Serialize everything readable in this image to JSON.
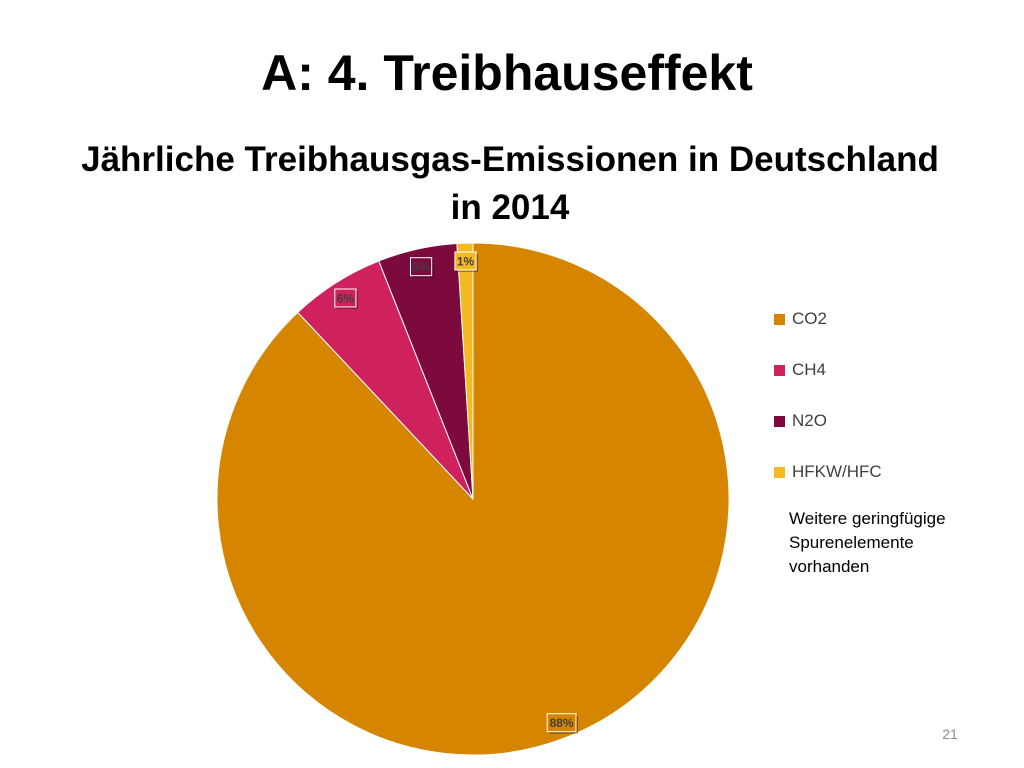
{
  "slide": {
    "title": "A: 4. Treibhauseffekt",
    "page_number": "21"
  },
  "footnote": {
    "lines": [
      "Weitere geringfügige",
      "Spurenelemente",
      "vorhanden"
    ]
  },
  "chart_data": {
    "type": "pie",
    "title_lines": [
      "Jährliche Treibhausgas-Emissionen in Deutschland",
      "in 2014"
    ],
    "categories": [
      "CO2",
      "CH4",
      "N2O",
      "HFKW/HFC"
    ],
    "values": [
      88,
      6,
      5,
      1
    ],
    "data_labels": [
      "88%",
      "6%",
      "5%",
      "1%"
    ],
    "colors": [
      "#D68500",
      "#CF215D",
      "#7C0A3C",
      "#F5B921"
    ],
    "legend_position": "right",
    "start_angle_deg": 0,
    "direction": "clockwise"
  }
}
